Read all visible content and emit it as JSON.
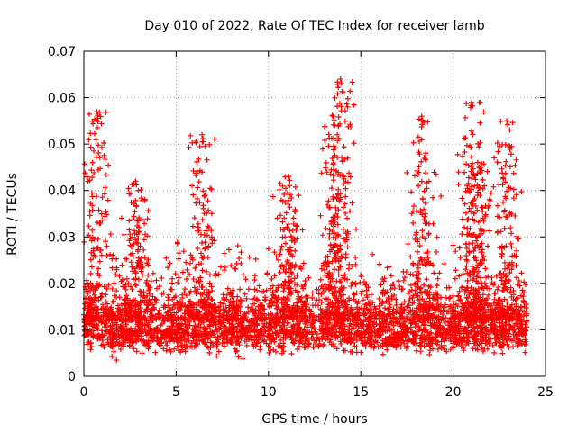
{
  "chart_data": {
    "type": "scatter",
    "title": "Day 010 of 2022, Rate Of TEC Index for receiver lamb",
    "xlabel": "GPS time / hours",
    "ylabel": "ROTI / TECUs",
    "xlim": [
      0,
      25
    ],
    "ylim": [
      0,
      0.07
    ],
    "x_ticks": [
      "0",
      "5",
      "10",
      "15",
      "20",
      "25"
    ],
    "y_ticks": [
      "0",
      "0.01",
      "0.02",
      "0.03",
      "0.04",
      "0.05",
      "0.06",
      "0.07"
    ],
    "grid": true,
    "marker": "plus",
    "color": "#ff0000",
    "x_extent_hours": [
      0,
      24
    ],
    "baseline_roti": 0.008,
    "burst_peaks": [
      {
        "x": 0.7,
        "y": 0.057
      },
      {
        "x": 2.8,
        "y": 0.042
      },
      {
        "x": 6.4,
        "y": 0.052
      },
      {
        "x": 11.1,
        "y": 0.043
      },
      {
        "x": 13.5,
        "y": 0.056
      },
      {
        "x": 13.9,
        "y": 0.064
      },
      {
        "x": 18.3,
        "y": 0.056
      },
      {
        "x": 21.0,
        "y": 0.059
      },
      {
        "x": 21.4,
        "y": 0.045
      },
      {
        "x": 22.9,
        "y": 0.055
      }
    ]
  }
}
